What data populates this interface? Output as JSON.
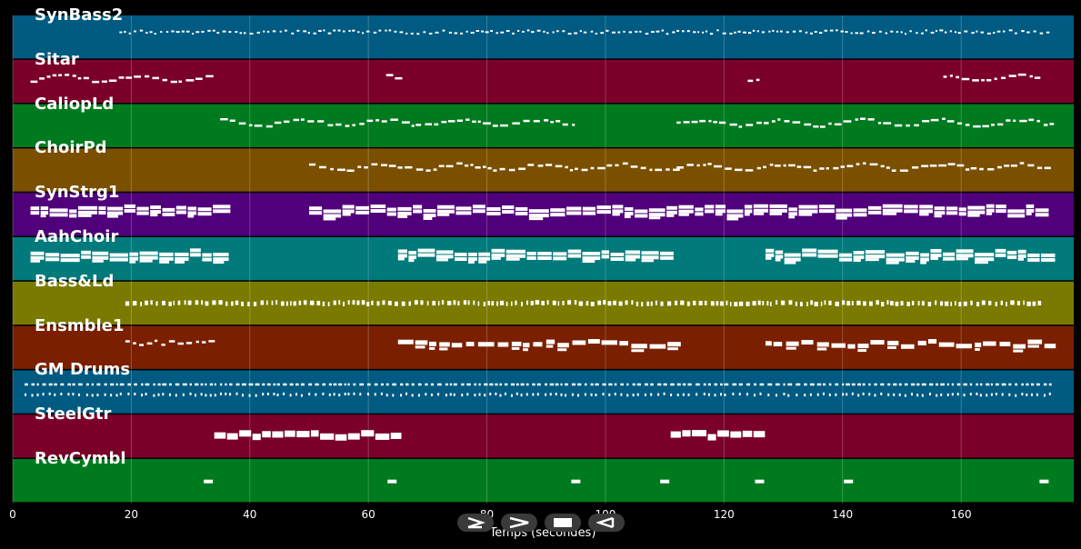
{
  "lanes": [
    {
      "name": "SynBass2",
      "color": "#005a82",
      "pattern": "bass",
      "segments": [
        [
          18,
          175
        ]
      ]
    },
    {
      "name": "Sitar",
      "color": "#7a002a",
      "pattern": "melody",
      "segments": [
        [
          3,
          34
        ],
        [
          63,
          65
        ],
        [
          124,
          126
        ],
        [
          157,
          173
        ]
      ]
    },
    {
      "name": "CaliopLd",
      "color": "#007a1e",
      "pattern": "melody",
      "segments": [
        [
          35,
          95
        ],
        [
          112,
          175
        ]
      ]
    },
    {
      "name": "ChoirPd",
      "color": "#7a5000",
      "pattern": "melody",
      "segments": [
        [
          50,
          112
        ],
        [
          112,
          175
        ]
      ]
    },
    {
      "name": "SynStrg1",
      "color": "#50007a",
      "pattern": "chords",
      "segments": [
        [
          3,
          34
        ],
        [
          50,
          175
        ]
      ]
    },
    {
      "name": "AahChoir",
      "color": "#007a7a",
      "pattern": "chords",
      "segments": [
        [
          3,
          34
        ],
        [
          65,
          111
        ],
        [
          127,
          175
        ]
      ]
    },
    {
      "name": "Bass&Ld",
      "color": "#7a7a00",
      "pattern": "rhythm",
      "segments": [
        [
          19,
          173
        ]
      ]
    },
    {
      "name": "Ensmble1",
      "color": "#7a2000",
      "pattern": "mixed",
      "segments": [
        [
          19,
          34
        ],
        [
          65,
          111
        ],
        [
          127,
          175
        ]
      ]
    },
    {
      "name": "GM Drums",
      "color": "#005a82",
      "pattern": "drums",
      "segments": [
        [
          2,
          175
        ]
      ]
    },
    {
      "name": "SteelGtr",
      "color": "#7a002a",
      "pattern": "blocks",
      "segments": [
        [
          34,
          65
        ],
        [
          111,
          126
        ]
      ]
    },
    {
      "name": "RevCymbl",
      "color": "#007a1e",
      "pattern": "hits",
      "hits": [
        33,
        64,
        95,
        110,
        126,
        141,
        174
      ]
    }
  ],
  "axis": {
    "xmin": 0,
    "xmax": 179,
    "ticks": [
      0,
      20,
      40,
      60,
      80,
      100,
      120,
      140,
      160
    ],
    "label": "Temps (secondes)"
  },
  "controls": [
    {
      "id": "play",
      "icon": "play-icon"
    },
    {
      "id": "forward",
      "icon": "forward-icon"
    },
    {
      "id": "stop",
      "icon": "stop-icon"
    },
    {
      "id": "rewind",
      "icon": "rewind-icon"
    }
  ]
}
